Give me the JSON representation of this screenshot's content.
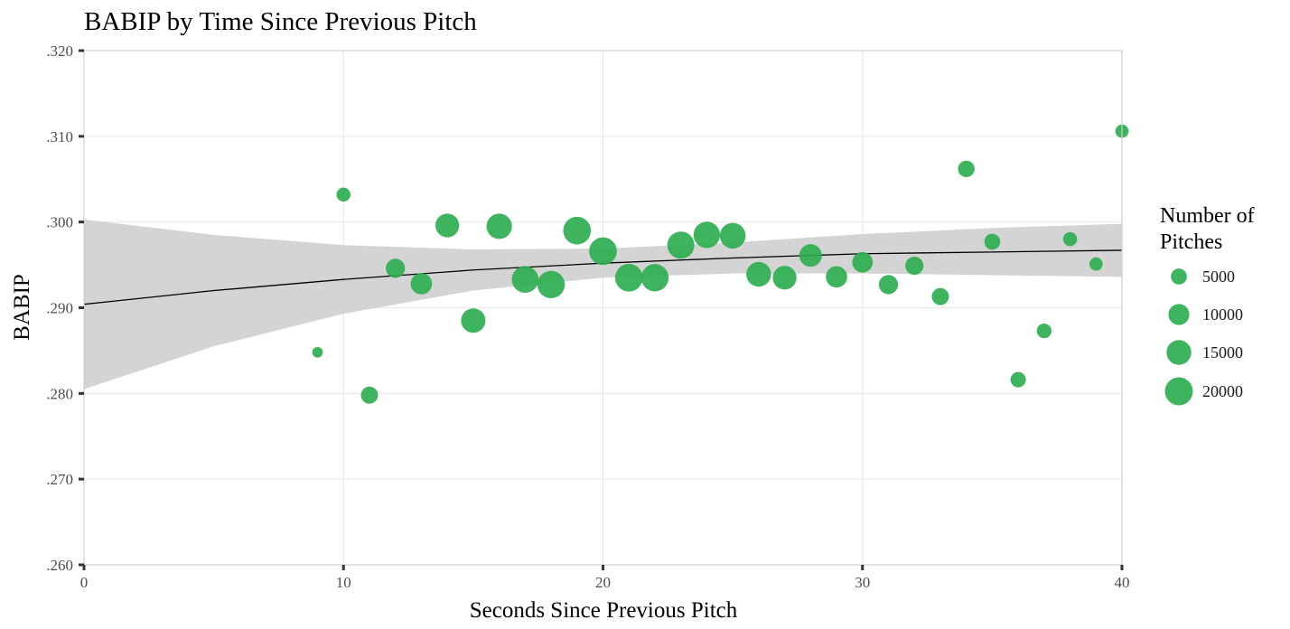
{
  "chart_data": {
    "type": "scatter",
    "title": "BABIP by Time Since Previous Pitch",
    "xlabel": "Seconds Since Previous Pitch",
    "ylabel": "BABIP",
    "xlim": [
      0,
      40
    ],
    "ylim": [
      0.26,
      0.32
    ],
    "x_ticks": [
      0,
      10,
      20,
      30,
      40
    ],
    "x_tick_labels": [
      "0",
      "10",
      "20",
      "30",
      "40"
    ],
    "y_ticks": [
      0.26,
      0.27,
      0.28,
      0.29,
      0.3,
      0.31,
      0.32
    ],
    "y_tick_labels": [
      ".260",
      ".270",
      ".280",
      ".290",
      ".300",
      ".310",
      ".320"
    ],
    "grid": true,
    "point_color": "#2DAE4F",
    "ribbon_color": "#CCCCCC",
    "line_color": "#000000",
    "legend": {
      "title_lines": [
        "Number of",
        "Pitches"
      ],
      "placement": "right",
      "entries": [
        {
          "label": "5000",
          "size": 5000
        },
        {
          "label": "10000",
          "size": 10000
        },
        {
          "label": "15000",
          "size": 15000
        },
        {
          "label": "20000",
          "size": 20000
        }
      ]
    },
    "points": [
      {
        "x": 9,
        "y": 0.2848,
        "n": 1500
      },
      {
        "x": 10,
        "y": 0.3032,
        "n": 3500
      },
      {
        "x": 11,
        "y": 0.2798,
        "n": 6000
      },
      {
        "x": 12,
        "y": 0.2946,
        "n": 8000
      },
      {
        "x": 13,
        "y": 0.2928,
        "n": 10500
      },
      {
        "x": 14,
        "y": 0.2996,
        "n": 13500
      },
      {
        "x": 15,
        "y": 0.2885,
        "n": 14500
      },
      {
        "x": 16,
        "y": 0.2995,
        "n": 16000
      },
      {
        "x": 17,
        "y": 0.2933,
        "n": 18000
      },
      {
        "x": 18,
        "y": 0.2927,
        "n": 19000
      },
      {
        "x": 19,
        "y": 0.299,
        "n": 19500
      },
      {
        "x": 20,
        "y": 0.2966,
        "n": 19500
      },
      {
        "x": 21,
        "y": 0.2935,
        "n": 19500
      },
      {
        "x": 22,
        "y": 0.2935,
        "n": 19000
      },
      {
        "x": 23,
        "y": 0.2973,
        "n": 18500
      },
      {
        "x": 24,
        "y": 0.2985,
        "n": 17500
      },
      {
        "x": 25,
        "y": 0.2984,
        "n": 16500
      },
      {
        "x": 26,
        "y": 0.2939,
        "n": 15000
      },
      {
        "x": 27,
        "y": 0.2935,
        "n": 13500
      },
      {
        "x": 28,
        "y": 0.2961,
        "n": 12000
      },
      {
        "x": 29,
        "y": 0.2936,
        "n": 10500
      },
      {
        "x": 30,
        "y": 0.2953,
        "n": 9500
      },
      {
        "x": 31,
        "y": 0.2927,
        "n": 8000
      },
      {
        "x": 32,
        "y": 0.2949,
        "n": 7000
      },
      {
        "x": 33,
        "y": 0.2913,
        "n": 6000
      },
      {
        "x": 34,
        "y": 0.3062,
        "n": 5500
      },
      {
        "x": 35,
        "y": 0.2977,
        "n": 5000
      },
      {
        "x": 36,
        "y": 0.2816,
        "n": 4500
      },
      {
        "x": 37,
        "y": 0.2873,
        "n": 4000
      },
      {
        "x": 38,
        "y": 0.298,
        "n": 3500
      },
      {
        "x": 39,
        "y": 0.2951,
        "n": 3000
      },
      {
        "x": 40,
        "y": 0.3106,
        "n": 3000
      }
    ],
    "smooth": {
      "x": [
        0,
        5,
        10,
        15,
        20,
        25,
        30,
        35,
        40
      ],
      "fit": [
        0.2904,
        0.292,
        0.2933,
        0.2944,
        0.2952,
        0.2958,
        0.2963,
        0.2965,
        0.2967
      ],
      "lower": [
        0.2805,
        0.2855,
        0.2893,
        0.292,
        0.2935,
        0.294,
        0.294,
        0.2938,
        0.2936
      ],
      "upper": [
        0.3003,
        0.2985,
        0.2973,
        0.2968,
        0.2969,
        0.2976,
        0.2986,
        0.2993,
        0.2998
      ]
    }
  }
}
